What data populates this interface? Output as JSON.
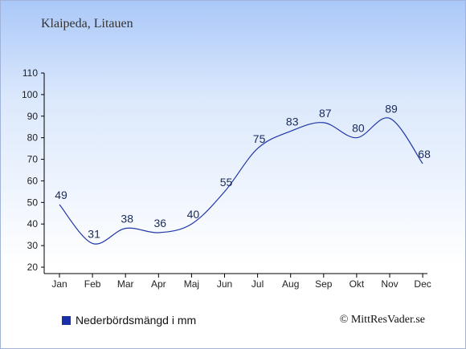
{
  "title": "Klaipeda, Litauen",
  "legend": {
    "label": "Nederbördsmängd i mm"
  },
  "copyright": "© MittResVader.se",
  "colors": {
    "line": "#1f36a8",
    "legend_swatch": "#1a2fa8",
    "axis": "#000000",
    "label_text": "#1a2a5a"
  },
  "chart_data": {
    "type": "line",
    "title": "",
    "xlabel": "",
    "ylabel": "",
    "categories": [
      "Jan",
      "Feb",
      "Mar",
      "Apr",
      "Maj",
      "Jun",
      "Jul",
      "Aug",
      "Sep",
      "Okt",
      "Nov",
      "Dec"
    ],
    "series": [
      {
        "name": "Nederbördsmängd i mm",
        "values": [
          49,
          31,
          38,
          36,
          40,
          55,
          75,
          83,
          87,
          80,
          89,
          68
        ]
      }
    ],
    "ylim": [
      20,
      110
    ],
    "yticks": [
      20,
      30,
      40,
      50,
      60,
      70,
      80,
      90,
      100,
      110
    ],
    "grid": false,
    "data_labels": true,
    "legend_position": "bottom-left"
  }
}
